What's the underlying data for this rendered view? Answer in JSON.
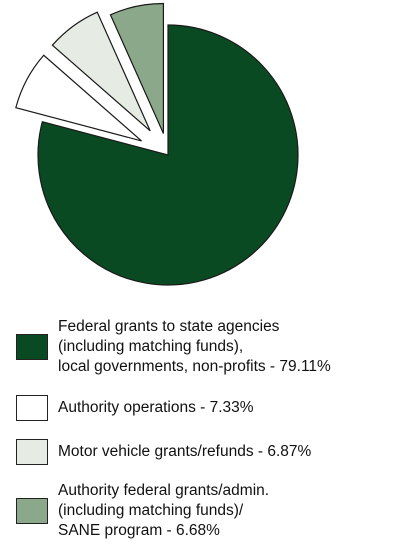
{
  "chart_data": {
    "type": "pie",
    "title": "",
    "exploded": true,
    "slices": [
      {
        "label_lines": [
          "Federal grants to state agencies",
          "(including matching funds),",
          "local governments, non-profits - 79.11%"
        ],
        "value": 79.11,
        "color": "#0a4a22"
      },
      {
        "label_lines": [
          "Authority operations - 7.33%"
        ],
        "value": 7.33,
        "color": "#ffffff"
      },
      {
        "label_lines": [
          "Motor vehicle grants/refunds - 6.87%"
        ],
        "value": 6.87,
        "color": "#e6ece4"
      },
      {
        "label_lines": [
          "Authority federal grants/admin.",
          "(including matching funds)/",
          "SANE program - 6.68%"
        ],
        "value": 6.68,
        "color": "#8ba98a"
      }
    ]
  }
}
